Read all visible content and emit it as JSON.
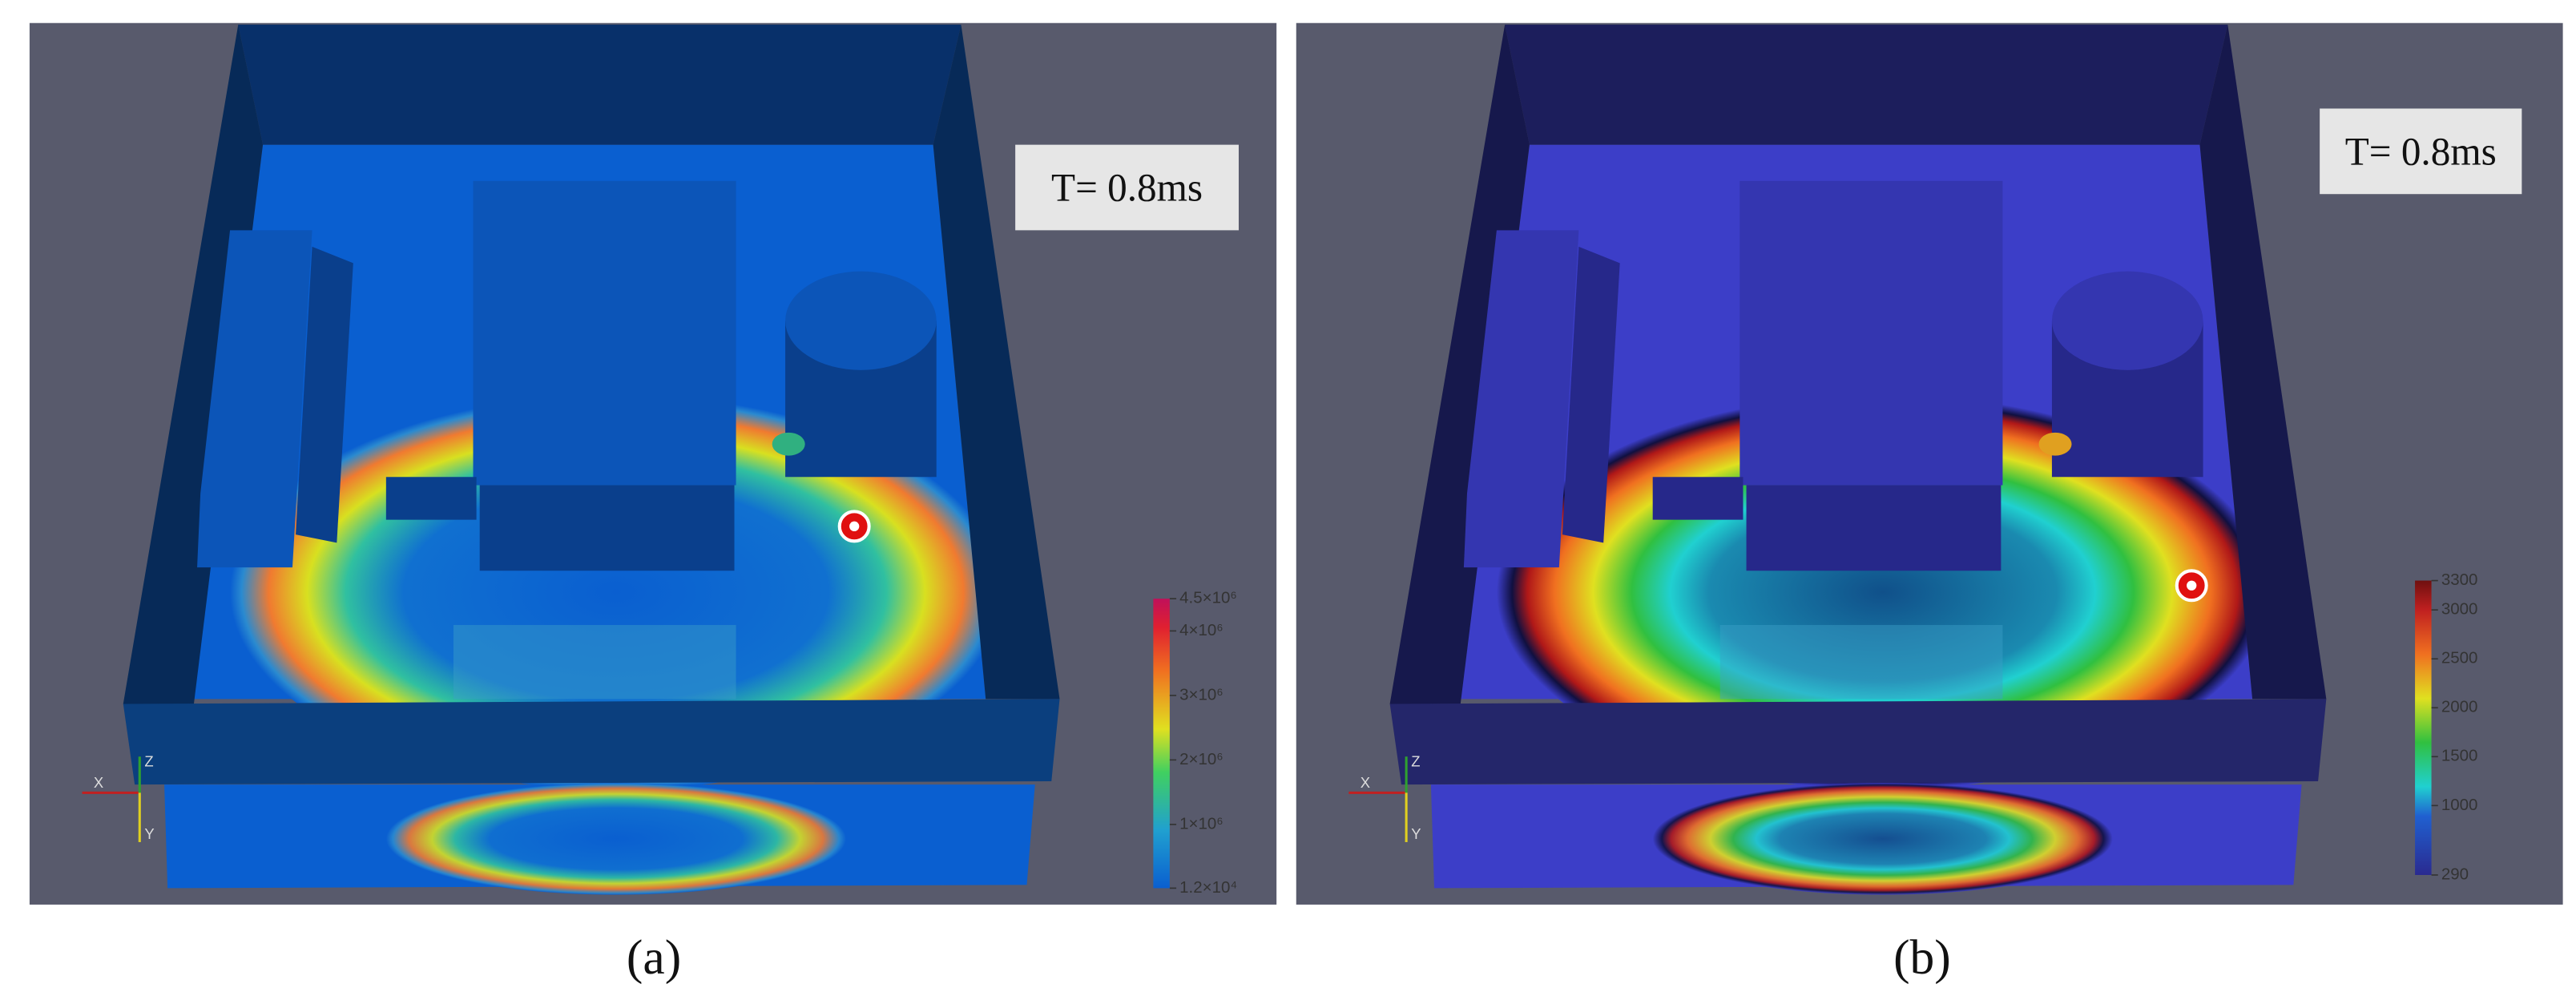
{
  "panels": [
    {
      "label": "(a)",
      "time_label": "T= 0.8ms",
      "axes": [
        "X",
        "Z",
        "Y"
      ],
      "colorbar": {
        "ticks": [
          {
            "value": 4500000,
            "label": "4.5×10⁶"
          },
          {
            "value": 4000000,
            "label": "4×10⁶"
          },
          {
            "value": 3000000,
            "label": "3×10⁶"
          },
          {
            "value": 2000000,
            "label": "2×10⁶"
          },
          {
            "value": 1000000,
            "label": "1×10⁶"
          },
          {
            "value": 12000,
            "label": "1.2×10⁴"
          }
        ]
      }
    },
    {
      "label": "(b)",
      "time_label": "T= 0.8ms",
      "axes": [
        "X",
        "Z",
        "Y"
      ],
      "colorbar": {
        "ticks": [
          3300,
          3000,
          2500,
          2000,
          1500,
          1000,
          290
        ]
      }
    }
  ]
}
